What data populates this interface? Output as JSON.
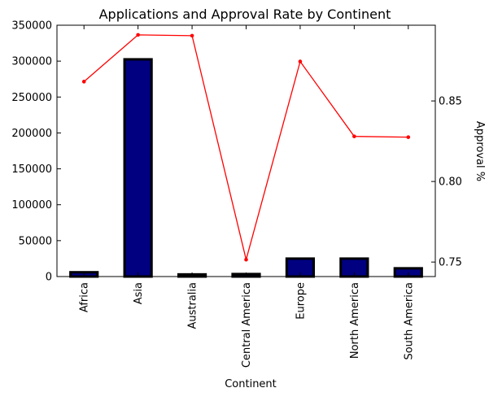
{
  "chart_data": {
    "title": "Applications and Approval Rate by Continent",
    "xlabel": "Continent",
    "ylabel_left": "",
    "ylabel_right": "Approval %",
    "categories": [
      "Africa",
      "Asia",
      "Australia",
      "Central America",
      "Europe",
      "North America",
      "South America"
    ],
    "series": [
      {
        "type": "bar",
        "axis": "left",
        "color": "#000080",
        "edge_color": "#000000",
        "values": [
          6000,
          302500,
          3000,
          3500,
          25000,
          25000,
          11500
        ]
      },
      {
        "type": "line",
        "axis": "right",
        "color": "#ff0000",
        "values": [
          0.862,
          0.891,
          0.8905,
          0.7515,
          0.8745,
          0.828,
          0.8275
        ]
      }
    ],
    "ylim_left": [
      0,
      350000
    ],
    "ylim_right": [
      0.741,
      0.897
    ],
    "yticks_left": [
      {
        "value": 0,
        "label": "0"
      },
      {
        "value": 50000,
        "label": "50000"
      },
      {
        "value": 100000,
        "label": "100000"
      },
      {
        "value": 150000,
        "label": "150000"
      },
      {
        "value": 200000,
        "label": "200000"
      },
      {
        "value": 250000,
        "label": "250000"
      },
      {
        "value": 300000,
        "label": "300000"
      },
      {
        "value": 350000,
        "label": "350000"
      }
    ],
    "yticks_right": [
      {
        "value": 0.75,
        "label": "0.75"
      },
      {
        "value": 0.8,
        "label": "0.80"
      },
      {
        "value": 0.85,
        "label": "0.85"
      }
    ],
    "grid": false,
    "legend": "none"
  }
}
